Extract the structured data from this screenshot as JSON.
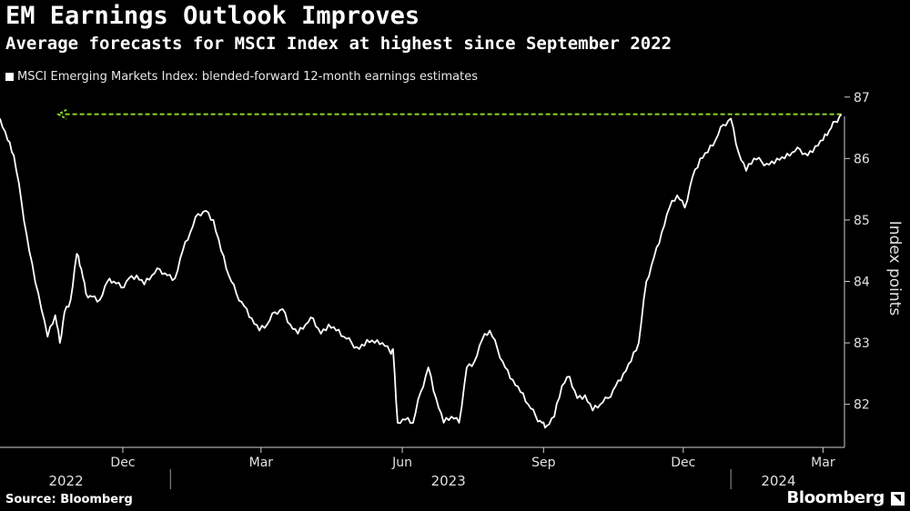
{
  "header": {
    "title": "EM Earnings Outlook Improves",
    "subtitle": "Average forecasts for MSCI Index at highest since September 2022"
  },
  "footer": {
    "source": "Source: Bloomberg",
    "brand": "Bloomberg"
  },
  "colors": {
    "background": "#000000",
    "line": "#ffffff",
    "annotation": "#8cd726"
  },
  "chart_data": {
    "type": "line",
    "title": "EM Earnings Outlook Improves",
    "subtitle": "Average forecasts for MSCI Index at highest since September 2022",
    "ylabel": "Index points",
    "ylim": [
      81.3,
      87.1
    ],
    "xlim": [
      "2022-09-12",
      "2024-03-15"
    ],
    "y_ticks": [
      82,
      83,
      84,
      85,
      86,
      87
    ],
    "y_axis_position": "right",
    "grid": false,
    "legend": "top-left",
    "x_ticks": [
      {
        "date": "2022-12-01",
        "label": "Dec"
      },
      {
        "date": "2023-03-01",
        "label": "Mar"
      },
      {
        "date": "2023-06-01",
        "label": "Jun"
      },
      {
        "date": "2023-09-01",
        "label": "Sep"
      },
      {
        "date": "2023-12-01",
        "label": "Dec"
      },
      {
        "date": "2024-03-01",
        "label": "Mar"
      }
    ],
    "x_year_labels": [
      {
        "date": "2022-10-25",
        "label": "2022"
      },
      {
        "date": "2023-07-01",
        "label": "2023"
      },
      {
        "date": "2024-02-01",
        "label": "2024"
      }
    ],
    "year_dividers": [
      "2023-01-01",
      "2024-01-01"
    ],
    "series": [
      {
        "name": "MSCI Emerging Markets Index: blended-forward 12-month earnings estimates",
        "x": [
          "2022-09-12",
          "2022-09-17",
          "2022-09-21",
          "2022-09-26",
          "2022-10-01",
          "2022-10-07",
          "2022-10-13",
          "2022-10-18",
          "2022-10-21",
          "2022-10-24",
          "2022-10-28",
          "2022-11-01",
          "2022-11-04",
          "2022-11-07",
          "2022-11-11",
          "2022-11-16",
          "2022-11-21",
          "2022-11-25",
          "2022-11-30",
          "2022-12-05",
          "2022-12-10",
          "2022-12-15",
          "2022-12-20",
          "2022-12-25",
          "2022-12-30",
          "2023-01-04",
          "2023-01-09",
          "2023-01-14",
          "2023-01-19",
          "2023-01-24",
          "2023-01-29",
          "2023-02-03",
          "2023-02-08",
          "2023-02-13",
          "2023-02-18",
          "2023-02-23",
          "2023-02-28",
          "2023-03-05",
          "2023-03-10",
          "2023-03-15",
          "2023-03-20",
          "2023-03-25",
          "2023-03-30",
          "2023-04-04",
          "2023-04-09",
          "2023-04-14",
          "2023-04-19",
          "2023-04-24",
          "2023-04-29",
          "2023-05-04",
          "2023-05-09",
          "2023-05-14",
          "2023-05-19",
          "2023-05-24",
          "2023-05-26",
          "2023-05-29",
          "2023-06-03",
          "2023-06-08",
          "2023-06-13",
          "2023-06-18",
          "2023-06-23",
          "2023-06-28",
          "2023-07-03",
          "2023-07-08",
          "2023-07-13",
          "2023-07-18",
          "2023-07-23",
          "2023-07-28",
          "2023-08-02",
          "2023-08-07",
          "2023-08-12",
          "2023-08-17",
          "2023-08-22",
          "2023-08-27",
          "2023-08-31",
          "2023-09-03",
          "2023-09-08",
          "2023-09-13",
          "2023-09-18",
          "2023-09-23",
          "2023-09-28",
          "2023-10-03",
          "2023-10-08",
          "2023-10-13",
          "2023-10-18",
          "2023-10-23",
          "2023-10-28",
          "2023-11-02",
          "2023-11-07",
          "2023-11-12",
          "2023-11-17",
          "2023-11-22",
          "2023-11-27",
          "2023-12-02",
          "2023-12-07",
          "2023-12-12",
          "2023-12-17",
          "2023-12-22",
          "2023-12-27",
          "2024-01-01",
          "2024-01-06",
          "2024-01-11",
          "2024-01-16",
          "2024-01-21",
          "2024-01-26",
          "2024-01-31",
          "2024-02-05",
          "2024-02-10",
          "2024-02-15",
          "2024-02-20",
          "2024-02-25",
          "2024-03-01",
          "2024-03-05",
          "2024-03-09",
          "2024-03-13"
        ],
        "y": [
          86.65,
          86.3,
          86.05,
          85.3,
          84.5,
          83.8,
          83.1,
          83.45,
          83.0,
          83.5,
          83.7,
          84.45,
          84.2,
          83.8,
          83.75,
          83.7,
          84.0,
          84.0,
          83.9,
          84.05,
          84.1,
          83.95,
          84.1,
          84.2,
          84.1,
          84.05,
          84.5,
          84.8,
          85.1,
          85.15,
          85.0,
          84.5,
          84.1,
          83.8,
          83.6,
          83.4,
          83.2,
          83.3,
          83.5,
          83.55,
          83.3,
          83.15,
          83.3,
          83.4,
          83.15,
          83.3,
          83.2,
          83.1,
          83.0,
          82.9,
          83.05,
          83.0,
          83.0,
          82.85,
          82.9,
          81.7,
          81.75,
          81.7,
          82.2,
          82.6,
          82.1,
          81.7,
          81.8,
          81.7,
          82.6,
          82.7,
          83.05,
          83.2,
          82.9,
          82.6,
          82.4,
          82.2,
          82.0,
          81.8,
          81.7,
          81.65,
          81.8,
          82.3,
          82.45,
          82.1,
          82.15,
          81.9,
          82.0,
          82.1,
          82.3,
          82.5,
          82.7,
          83.0,
          84.0,
          84.4,
          84.8,
          85.2,
          85.4,
          85.2,
          85.7,
          86.0,
          86.1,
          86.3,
          86.55,
          86.65,
          86.1,
          85.8,
          86.0,
          85.95,
          85.9,
          86.0,
          86.0,
          86.1,
          86.15,
          86.05,
          86.2,
          86.3,
          86.45,
          86.6,
          86.72
        ]
      }
    ],
    "annotation": {
      "type": "arrow",
      "y": 86.72,
      "from": "2024-03-13",
      "to": "2022-10-20"
    }
  }
}
